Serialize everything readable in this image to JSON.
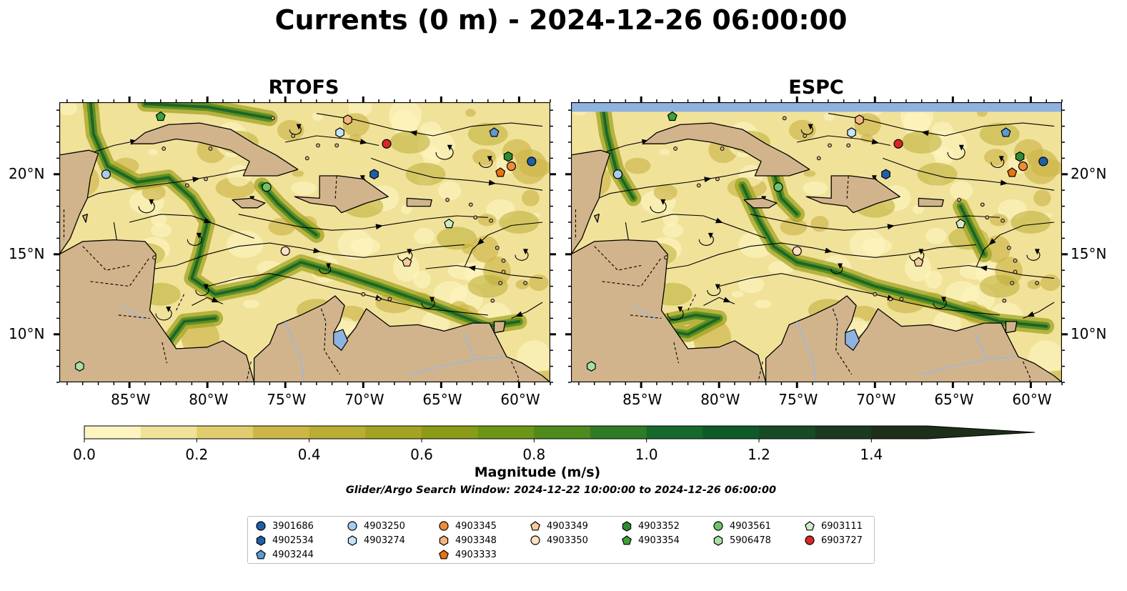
{
  "title": "Currents (0 m) - 2024-12-26 06:00:00",
  "colors": {
    "land": "#d2b48c",
    "water_top": "#8fb3e0",
    "lake": "#8fb3e0",
    "colormap": [
      "#fdf5bf",
      "#f1e29a",
      "#e2cd6e",
      "#cdb548",
      "#b9ad33",
      "#a3a323",
      "#8b9b17",
      "#6e9516",
      "#4e8a1c",
      "#2f7c26",
      "#16692b",
      "#0f5a29",
      "#174a25",
      "#1b3a1f",
      "#1d2e19"
    ]
  },
  "chart_data": {
    "type": "heatmap",
    "panels": [
      {
        "title": "RTOFS",
        "model": "rtofs"
      },
      {
        "title": "ESPC",
        "model": "espc"
      }
    ],
    "lon_range": [
      -89.5,
      -58.0
    ],
    "lat_range": [
      7.0,
      24.5
    ],
    "lon_ticks": [
      -85,
      -80,
      -75,
      -70,
      -65,
      -60
    ],
    "lon_tick_labels": [
      "85°W",
      "80°W",
      "75°W",
      "70°W",
      "65°W",
      "60°W"
    ],
    "lat_ticks": [
      10,
      15,
      20
    ],
    "lat_tick_labels": [
      "10°N",
      "15°N",
      "20°N"
    ],
    "colorbar": {
      "label": "Magnitude (m/s)",
      "vmin": 0.0,
      "vmax": 1.5,
      "step": 0.1,
      "extend": "max",
      "ticks": [
        0.0,
        0.2,
        0.4,
        0.6,
        0.8,
        1.0,
        1.2,
        1.4
      ],
      "tick_labels": [
        "0.0",
        "0.2",
        "0.4",
        "0.6",
        "0.8",
        "1.0",
        "1.2",
        "1.4"
      ]
    },
    "subtitle": "Glider/Argo Search Window: 2024-12-22 10:00:00 to 2024-12-26 06:00:00",
    "floats": [
      {
        "id": "3901686",
        "marker": "circle",
        "color": "#1f5fa8",
        "lon": -59.2,
        "lat": 20.8
      },
      {
        "id": "4902534",
        "marker": "hexagon",
        "color": "#1f5fa8",
        "lon": -69.3,
        "lat": 20.0
      },
      {
        "id": "4903244",
        "marker": "pentagon",
        "color": "#5b9bd5",
        "lon": -61.6,
        "lat": 22.6
      },
      {
        "id": "4903250",
        "marker": "circle",
        "color": "#a6cdee",
        "lon": -86.5,
        "lat": 20.0
      },
      {
        "id": "4903274",
        "marker": "hexagon",
        "color": "#c7e3f7",
        "lon": -71.5,
        "lat": 22.6
      },
      {
        "id": "4903333",
        "marker": "pentagon",
        "color": "#e8740e",
        "lon": -61.2,
        "lat": 20.1
      },
      {
        "id": "4903345",
        "marker": "circle",
        "color": "#f08b38",
        "lon": -60.5,
        "lat": 20.5
      },
      {
        "id": "4903348",
        "marker": "hexagon",
        "color": "#f6b57a",
        "lon": -71.0,
        "lat": 23.4
      },
      {
        "id": "4903349",
        "marker": "pentagon",
        "color": "#f8c99a",
        "lon": -67.2,
        "lat": 14.5
      },
      {
        "id": "4903350",
        "marker": "circle",
        "color": "#fde0c5",
        "lon": -75.0,
        "lat": 15.2
      },
      {
        "id": "4903352",
        "marker": "hexagon",
        "color": "#2e8b2e",
        "lon": -60.7,
        "lat": 21.1
      },
      {
        "id": "4903354",
        "marker": "pentagon",
        "color": "#3aa33a",
        "lon": -83.0,
        "lat": 23.6
      },
      {
        "id": "4903561",
        "marker": "circle",
        "color": "#6cc36c",
        "lon": -76.2,
        "lat": 19.2
      },
      {
        "id": "5906478",
        "marker": "hexagon",
        "color": "#a8e0a0",
        "lon": -88.2,
        "lat": 8.0
      },
      {
        "id": "6903111",
        "marker": "pentagon",
        "color": "#cdebc8",
        "lon": -64.5,
        "lat": 16.9
      },
      {
        "id": "6903727",
        "marker": "circle",
        "color": "#d62728",
        "lon": -68.5,
        "lat": 21.9
      }
    ]
  }
}
